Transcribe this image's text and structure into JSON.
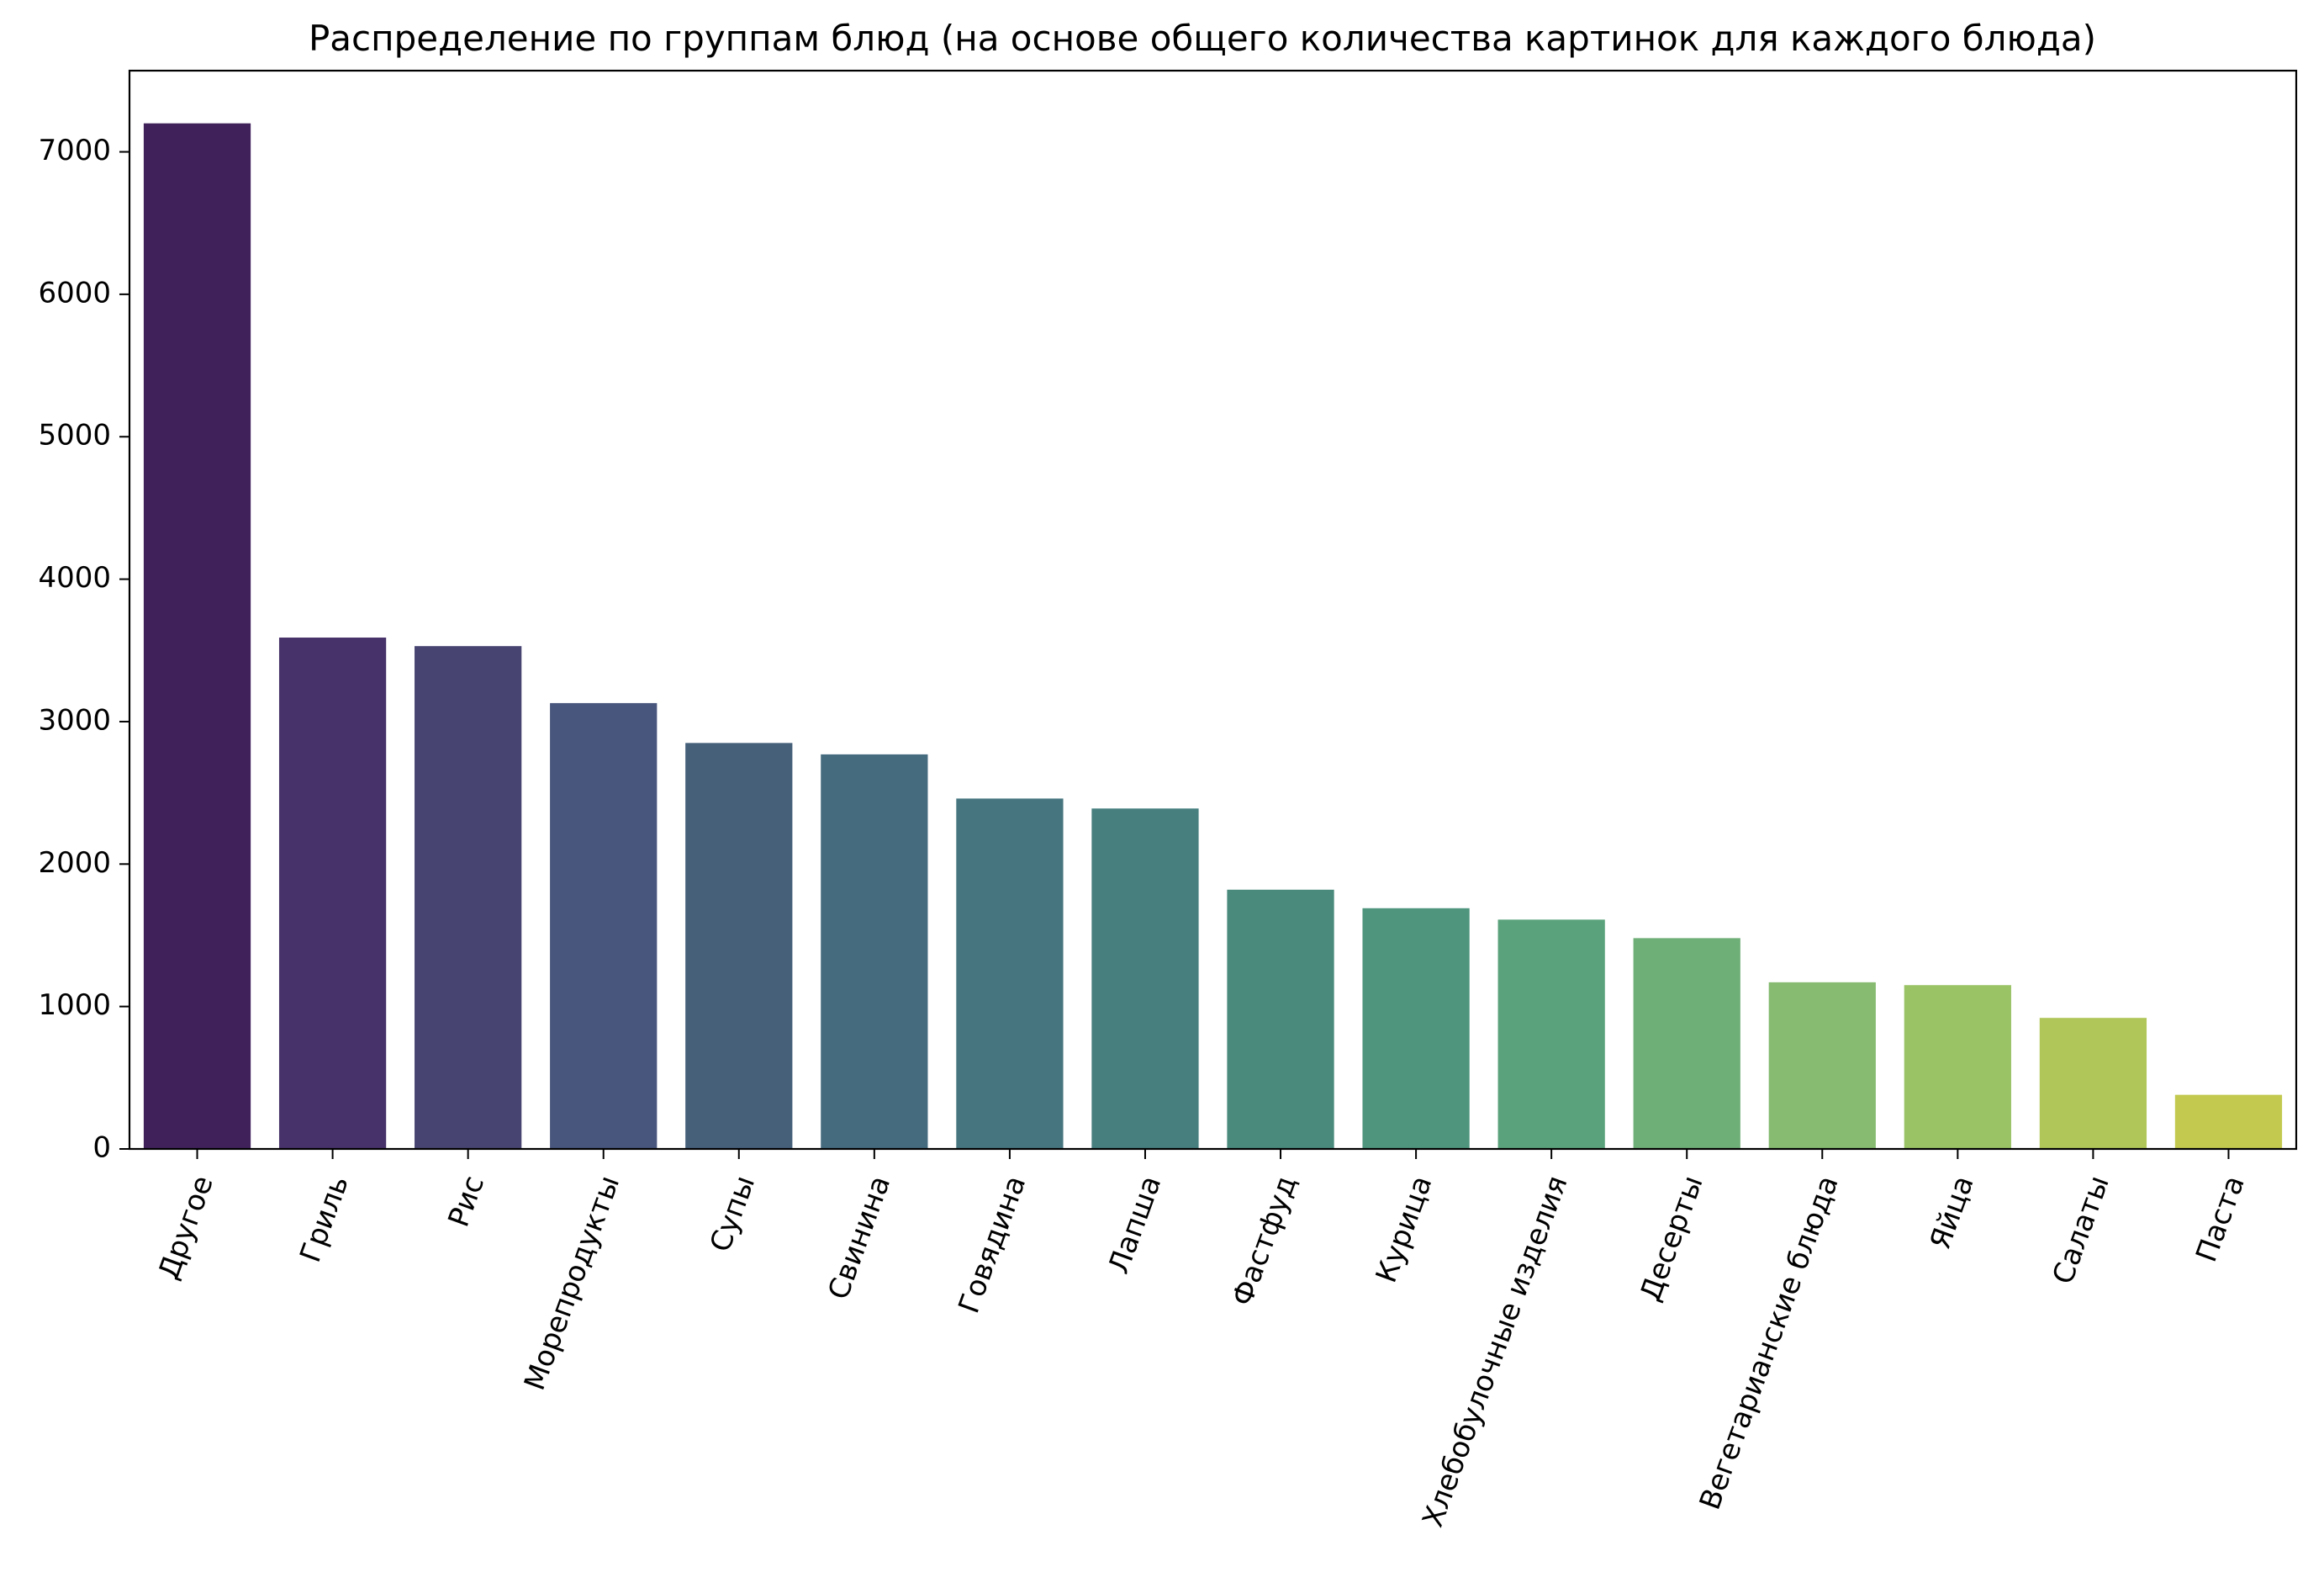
{
  "chart_data": {
    "type": "bar",
    "title": "Распределение по группам блюд (на основе общего количества картинок для каждого блюда)",
    "xlabel": "",
    "ylabel": "",
    "categories": [
      "Другое",
      "Гриль",
      "Рис",
      "Морепродукты",
      "Супы",
      "Свинина",
      "Говядина",
      "Лапша",
      "Фастфуд",
      "Курица",
      "Хлебобулочные изделия",
      "Десерты",
      "Вегетарианские блюда",
      "Яйца",
      "Салаты",
      "Паста"
    ],
    "values": [
      7200,
      3590,
      3530,
      3130,
      2850,
      2770,
      2460,
      2390,
      1820,
      1690,
      1610,
      1480,
      1170,
      1150,
      920,
      380
    ],
    "colors": [
      "#40215a",
      "#47326a",
      "#474471",
      "#48557c",
      "#46607a",
      "#456b7f",
      "#46757f",
      "#477e7e",
      "#4a8a7c",
      "#4f957d",
      "#5aa27b",
      "#6eae77",
      "#86bb71",
      "#9ac366",
      "#b0c658",
      "#c3c94f"
    ],
    "yticks": [
      "0",
      "1000",
      "2000",
      "3000",
      "4000",
      "5000",
      "6000",
      "7000"
    ],
    "ylim": [
      0,
      7570
    ],
    "grid": false,
    "legend": "none"
  }
}
